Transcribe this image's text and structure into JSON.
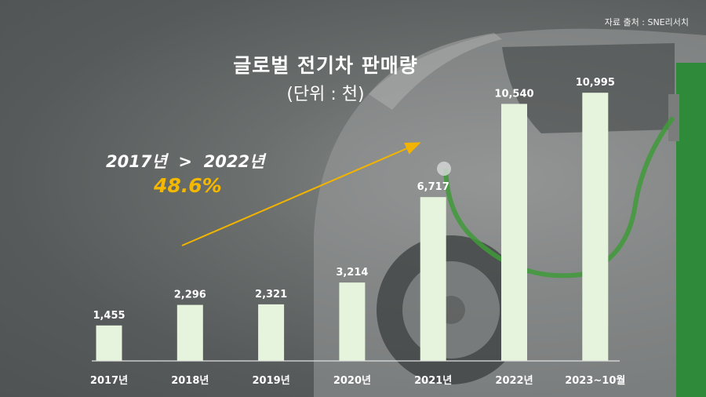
{
  "source": "자료 출처 : SNE리서치",
  "title": "글로벌 전기차 판매량",
  "subtitle": "(단위 : 천)",
  "annotation": {
    "comparison": "2017년  >  2022년",
    "growth": "48.6%"
  },
  "colors": {
    "bar": "#e6f3dd",
    "growth_text": "#f5b800",
    "arrow": "#f2b400",
    "axis": "#e0e0e0"
  },
  "chart_data": {
    "type": "bar",
    "categories": [
      "2017년",
      "2018년",
      "2019년",
      "2020년",
      "2021년",
      "2022년",
      "2023~10월"
    ],
    "values": [
      1455,
      2296,
      2321,
      3214,
      6717,
      10540,
      10995
    ],
    "value_labels": [
      "1,455",
      "2,296",
      "2,321",
      "3,214",
      "6,717",
      "10,540",
      "10,995"
    ],
    "ylim": [
      0,
      12000
    ],
    "grid": false,
    "legend": "none"
  }
}
